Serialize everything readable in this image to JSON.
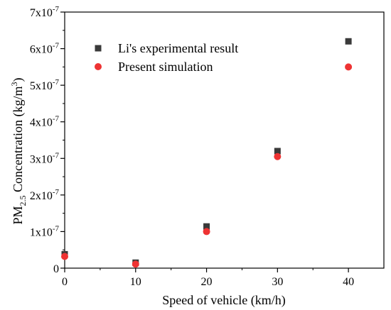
{
  "chart_data": {
    "type": "scatter",
    "title": "",
    "xlabel": "Speed of vehicle (km/h)",
    "ylabel": "PM2.5 Concentration (kg/m3)",
    "ylabel_parts": {
      "pre": "PM",
      "sub": "2.5",
      "mid": " Concentration (kg/m",
      "sup": "3",
      "post": ")"
    },
    "xlim": [
      0,
      45
    ],
    "ylim": [
      0,
      7e-07
    ],
    "x_ticks": [
      0,
      10,
      20,
      30,
      40
    ],
    "y_ticks": [
      {
        "value": 0,
        "mantissa": "0",
        "exponent": ""
      },
      {
        "value": 1e-07,
        "mantissa": "1x10",
        "exponent": "-7"
      },
      {
        "value": 2e-07,
        "mantissa": "2x10",
        "exponent": "-7"
      },
      {
        "value": 3e-07,
        "mantissa": "3x10",
        "exponent": "-7"
      },
      {
        "value": 4e-07,
        "mantissa": "4x10",
        "exponent": "-7"
      },
      {
        "value": 5e-07,
        "mantissa": "5x10",
        "exponent": "-7"
      },
      {
        "value": 6e-07,
        "mantissa": "6x10",
        "exponent": "-7"
      },
      {
        "value": 7e-07,
        "mantissa": "7x10",
        "exponent": "-7"
      }
    ],
    "grid": false,
    "legend_position": "top-left",
    "series": [
      {
        "name": "Li's experimental result",
        "marker": "square",
        "color": "#3a3a3a",
        "x": [
          0,
          10,
          20,
          30,
          40
        ],
        "y": [
          3.8e-08,
          1.5e-08,
          1.14e-07,
          3.2e-07,
          6.2e-07
        ]
      },
      {
        "name": "Present simulation",
        "marker": "circle",
        "color": "#ee3333",
        "x": [
          0,
          10,
          20,
          30,
          40
        ],
        "y": [
          3.2e-08,
          1.1e-08,
          1e-07,
          3.05e-07,
          5.5e-07
        ]
      }
    ]
  }
}
